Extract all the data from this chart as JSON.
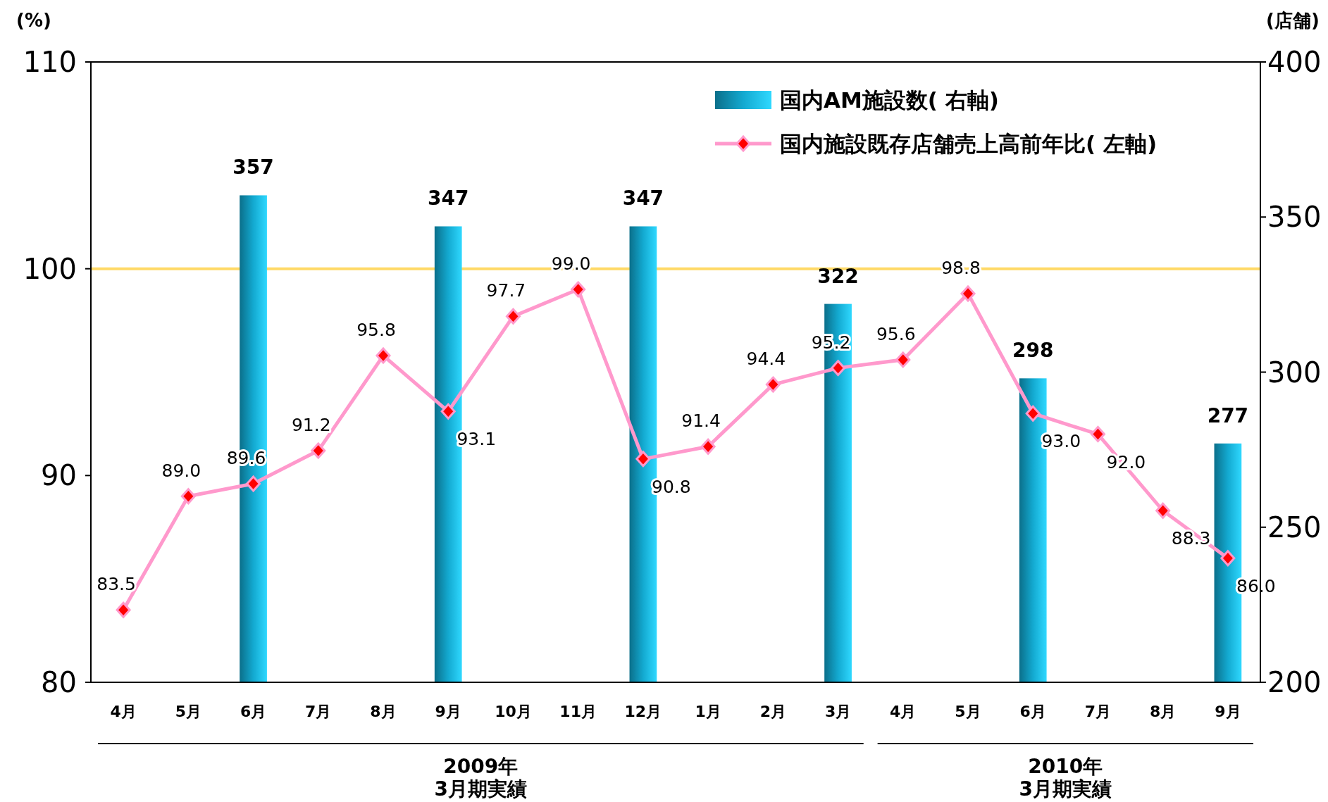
{
  "chart_data": {
    "type": "bar",
    "ylabel": "(%)",
    "y2label": "(店舗)",
    "categories": [
      "4月",
      "5月",
      "6月",
      "7月",
      "8月",
      "9月",
      "10月",
      "11月",
      "12月",
      "1月",
      "2月",
      "3月",
      "4月",
      "5月",
      "6月",
      "7月",
      "8月",
      "9月"
    ],
    "series": [
      {
        "name": "国内AM施設数( 右軸)",
        "axis": "y2",
        "color": "#13a9d0",
        "values": [
          null,
          null,
          357,
          null,
          null,
          347,
          null,
          null,
          347,
          null,
          null,
          322,
          null,
          null,
          298,
          null,
          null,
          277
        ],
        "value_labels": [
          null,
          null,
          "357",
          null,
          null,
          "347",
          null,
          null,
          "347",
          null,
          null,
          "322",
          null,
          null,
          "298",
          null,
          null,
          "277"
        ]
      },
      {
        "name": "国内施設既存店舗売上高前年比( 左軸)",
        "type": "line",
        "color": "#ff99cc",
        "marker": "diamond",
        "values": [
          83.5,
          89.0,
          89.6,
          91.2,
          95.8,
          93.1,
          97.7,
          99.0,
          90.8,
          91.4,
          94.4,
          95.2,
          95.6,
          98.8,
          93.0,
          92.0,
          88.3,
          86.0
        ],
        "value_labels": [
          "83.5",
          "89.0",
          "89.6",
          "91.2",
          "95.8",
          "93.1",
          "97.7",
          "99.0",
          "90.8",
          "91.4",
          "94.4",
          "95.2",
          "95.6",
          "98.8",
          "93.0",
          "92.0",
          "88.3",
          "86.0"
        ]
      }
    ],
    "ylim": [
      80,
      110
    ],
    "yticks": [
      80,
      90,
      100,
      110
    ],
    "y2lim": [
      200,
      400
    ],
    "y2ticks": [
      200,
      250,
      300,
      350,
      400
    ],
    "ref_lines": [
      {
        "axis": "y",
        "value": 100,
        "color": "#ffd966"
      }
    ],
    "legend": "top right",
    "grid": false,
    "annotations": [
      "2009年\n3月期実績",
      "2010年\n3月期実績"
    ]
  }
}
